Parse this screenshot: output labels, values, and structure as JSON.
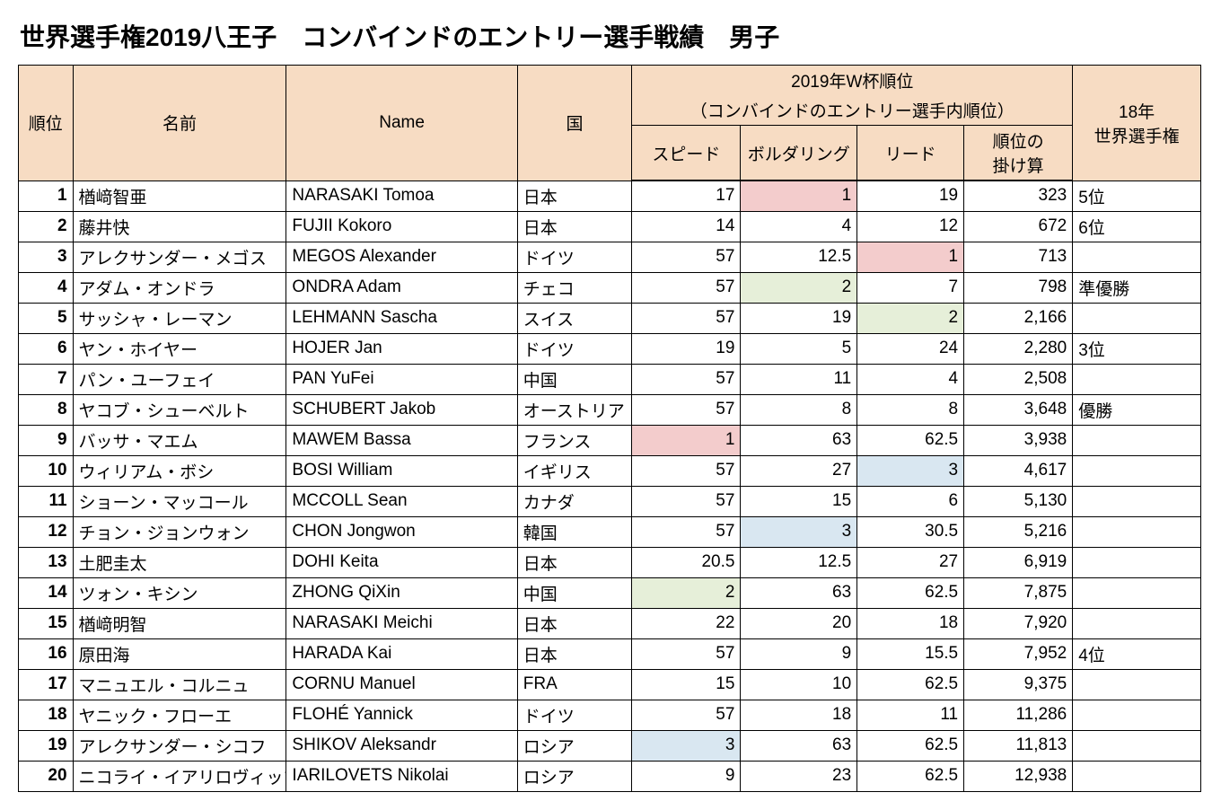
{
  "title": "世界選手権2019八王子　コンバインドのエントリー選手戦績　男子",
  "colors": {
    "header_bg": "#f7dcc3",
    "hl_pink": "#f3cccc",
    "hl_green": "#e6efd9",
    "hl_blue": "#d9e7f1",
    "border": "#000000",
    "bg": "#ffffff"
  },
  "columns": {
    "rank": "順位",
    "name_j": "名前",
    "name_e": "Name",
    "country": "国",
    "wcup_group_line1": "2019年W杯順位",
    "wcup_group_line2": "（コンバインドのエントリー選手内順位）",
    "speed": "スピード",
    "boulder": "ボルダリング",
    "lead": "リード",
    "product_line1": "順位の",
    "product_line2": "掛け算",
    "wc18_line1": "18年",
    "wc18_line2": "世界選手権"
  },
  "rows": [
    {
      "rank": "1",
      "name_j": "楢﨑智亜",
      "name_e": "NARASAKI Tomoa",
      "country": "日本",
      "speed": "17",
      "boulder": "1",
      "lead": "19",
      "product": "323",
      "wc18": "5位",
      "hl": {
        "boulder": "pink"
      }
    },
    {
      "rank": "2",
      "name_j": "藤井快",
      "name_e": "FUJII Kokoro",
      "country": "日本",
      "speed": "14",
      "boulder": "4",
      "lead": "12",
      "product": "672",
      "wc18": "6位"
    },
    {
      "rank": "3",
      "name_j": "アレクサンダー・メゴス",
      "name_e": "MEGOS Alexander",
      "country": "ドイツ",
      "speed": "57",
      "boulder": "12.5",
      "lead": "1",
      "product": "713",
      "wc18": "",
      "hl": {
        "lead": "pink"
      }
    },
    {
      "rank": "4",
      "name_j": "アダム・オンドラ",
      "name_e": "ONDRA Adam",
      "country": "チェコ",
      "speed": "57",
      "boulder": "2",
      "lead": "7",
      "product": "798",
      "wc18": "準優勝",
      "hl": {
        "boulder": "green"
      }
    },
    {
      "rank": "5",
      "name_j": "サッシャ・レーマン",
      "name_e": "LEHMANN Sascha",
      "country": "スイス",
      "speed": "57",
      "boulder": "19",
      "lead": "2",
      "product": "2,166",
      "wc18": "",
      "hl": {
        "lead": "green"
      }
    },
    {
      "rank": "6",
      "name_j": "ヤン・ホイヤー",
      "name_e": "HOJER Jan",
      "country": "ドイツ",
      "speed": "19",
      "boulder": "5",
      "lead": "24",
      "product": "2,280",
      "wc18": "3位"
    },
    {
      "rank": "7",
      "name_j": "パン・ユーフェイ",
      "name_e": "PAN YuFei",
      "country": "中国",
      "speed": "57",
      "boulder": "11",
      "lead": "4",
      "product": "2,508",
      "wc18": ""
    },
    {
      "rank": "8",
      "name_j": "ヤコブ・シューベルト",
      "name_e": "SCHUBERT Jakob",
      "country": "オーストリア",
      "speed": "57",
      "boulder": "8",
      "lead": "8",
      "product": "3,648",
      "wc18": "優勝"
    },
    {
      "rank": "9",
      "name_j": "バッサ・マエム",
      "name_e": "MAWEM Bassa",
      "country": "フランス",
      "speed": "1",
      "boulder": "63",
      "lead": "62.5",
      "product": "3,938",
      "wc18": "",
      "hl": {
        "speed": "pink"
      }
    },
    {
      "rank": "10",
      "name_j": "ウィリアム・ボシ",
      "name_e": "BOSI William",
      "country": "イギリス",
      "speed": "57",
      "boulder": "27",
      "lead": "3",
      "product": "4,617",
      "wc18": "",
      "hl": {
        "lead": "blue"
      }
    },
    {
      "rank": "11",
      "name_j": "ショーン・マッコール",
      "name_e": "MCCOLL Sean",
      "country": "カナダ",
      "speed": "57",
      "boulder": "15",
      "lead": "6",
      "product": "5,130",
      "wc18": ""
    },
    {
      "rank": "12",
      "name_j": "チョン・ジョンウォン",
      "name_e": "CHON Jongwon",
      "country": "韓国",
      "speed": "57",
      "boulder": "3",
      "lead": "30.5",
      "product": "5,216",
      "wc18": "",
      "hl": {
        "boulder": "blue"
      }
    },
    {
      "rank": "13",
      "name_j": "土肥圭太",
      "name_e": "DOHI Keita",
      "country": "日本",
      "speed": "20.5",
      "boulder": "12.5",
      "lead": "27",
      "product": "6,919",
      "wc18": ""
    },
    {
      "rank": "14",
      "name_j": "ツォン・キシン",
      "name_e": "ZHONG QiXin",
      "country": "中国",
      "speed": "2",
      "boulder": "63",
      "lead": "62.5",
      "product": "7,875",
      "wc18": "",
      "hl": {
        "speed": "green"
      }
    },
    {
      "rank": "15",
      "name_j": "楢﨑明智",
      "name_e": "NARASAKI Meichi",
      "country": "日本",
      "speed": "22",
      "boulder": "20",
      "lead": "18",
      "product": "7,920",
      "wc18": ""
    },
    {
      "rank": "16",
      "name_j": "原田海",
      "name_e": "HARADA Kai",
      "country": "日本",
      "speed": "57",
      "boulder": "9",
      "lead": "15.5",
      "product": "7,952",
      "wc18": "4位"
    },
    {
      "rank": "17",
      "name_j": "マニュエル・コルニュ",
      "name_e": "CORNU Manuel",
      "country": "FRA",
      "speed": "15",
      "boulder": "10",
      "lead": "62.5",
      "product": "9,375",
      "wc18": ""
    },
    {
      "rank": "18",
      "name_j": "ヤニック・フローエ",
      "name_e": "FLOHÉ Yannick",
      "country": "ドイツ",
      "speed": "57",
      "boulder": "18",
      "lead": "11",
      "product": "11,286",
      "wc18": ""
    },
    {
      "rank": "19",
      "name_j": "アレクサンダー・シコフ",
      "name_e": "SHIKOV Aleksandr",
      "country": "ロシア",
      "speed": "3",
      "boulder": "63",
      "lead": "62.5",
      "product": "11,813",
      "wc18": "",
      "hl": {
        "speed": "blue"
      }
    },
    {
      "rank": "20",
      "name_j": "ニコライ・イアリロヴィッツ",
      "name_e": "IARILOVETS Nikolai",
      "country": "ロシア",
      "speed": "9",
      "boulder": "23",
      "lead": "62.5",
      "product": "12,938",
      "wc18": ""
    }
  ]
}
